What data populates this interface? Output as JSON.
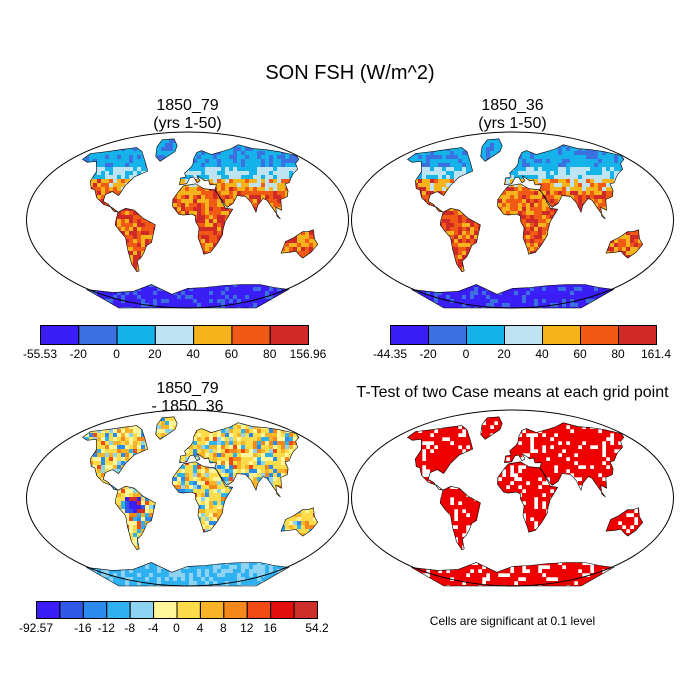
{
  "title": "SON FSH (W/m^2)",
  "panels": [
    {
      "title_line1": "1850_79",
      "title_line2": "(yrs 1-50)"
    },
    {
      "title_line1": "1850_36",
      "title_line2": "(yrs 1-50)"
    },
    {
      "title_line1": "1850_79",
      "title_line2": "- 1850_36"
    },
    {
      "title_line1": "T-Test of two Case means at each grid point",
      "title_line2": ""
    }
  ],
  "colorbars": [
    {
      "colors": [
        "#3a1ef5",
        "#3c6fe0",
        "#16b3eb",
        "#bfe3f0",
        "#f5b41c",
        "#f05a14",
        "#cf2a28"
      ],
      "labels": [
        "-55.53",
        "-20",
        "0",
        "20",
        "40",
        "60",
        "80",
        "156.96"
      ]
    },
    {
      "colors": [
        "#3a1ef5",
        "#3c6fe0",
        "#16b3eb",
        "#bfe3f0",
        "#f5b41c",
        "#f05a14",
        "#cf2a28"
      ],
      "labels": [
        "-44.35",
        "-20",
        "0",
        "20",
        "40",
        "60",
        "80",
        "161.4"
      ]
    },
    {
      "colors": [
        "#3a1ef5",
        "#3157e6",
        "#2b8aee",
        "#2fb0f0",
        "#8fd3f2",
        "#fff799",
        "#fddc4c",
        "#f9b326",
        "#f5881a",
        "#f04b12",
        "#e30f0f",
        "#cd2f2a"
      ],
      "labels": [
        "-92.57",
        "",
        "-16",
        "-12",
        "-8",
        "-4",
        "0",
        "4",
        "8",
        "12",
        "16",
        "",
        "54.2"
      ]
    }
  ],
  "significance_note": "Cells are significant at 0.1 level",
  "map_colors": {
    "ocean": "#ffffff",
    "significant": "#ee0000"
  }
}
